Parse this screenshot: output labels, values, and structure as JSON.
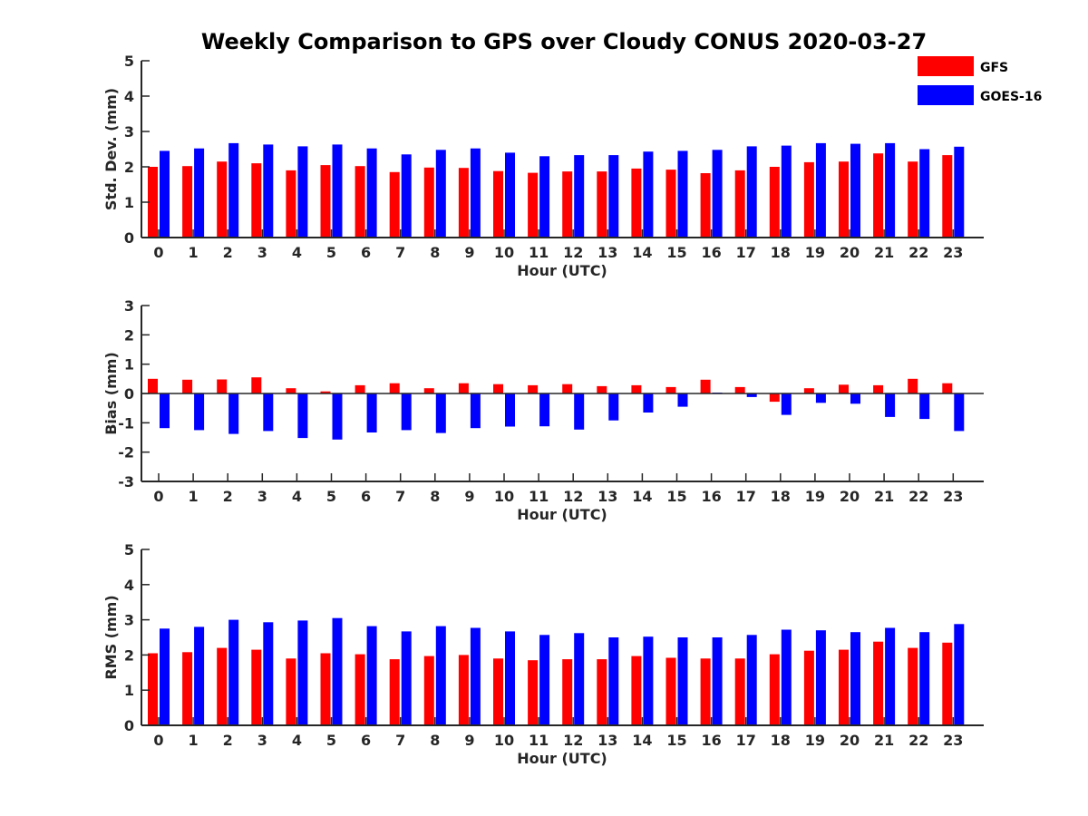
{
  "title": "Weekly Comparison to GPS over Cloudy CONUS 2020-03-27",
  "legend": {
    "placement": "top-right",
    "items": [
      {
        "label": "GFS",
        "color": "#ff0000"
      },
      {
        "label": "GOES-16",
        "color": "#0000ff"
      }
    ]
  },
  "chart_data": [
    {
      "type": "bar",
      "ylabel": "Std. Dev. (mm)",
      "xlabel": "Hour (UTC)",
      "ylim": [
        0,
        5
      ],
      "yticks": [
        0,
        1,
        2,
        3,
        4,
        5
      ],
      "categories": [
        "0",
        "1",
        "2",
        "3",
        "4",
        "5",
        "6",
        "7",
        "8",
        "9",
        "10",
        "11",
        "12",
        "13",
        "14",
        "15",
        "16",
        "17",
        "18",
        "19",
        "20",
        "21",
        "22",
        "23"
      ],
      "series": [
        {
          "name": "GFS",
          "color": "#ff0000",
          "values": [
            2.0,
            2.02,
            2.15,
            2.1,
            1.9,
            2.05,
            2.02,
            1.85,
            1.98,
            1.97,
            1.88,
            1.83,
            1.87,
            1.87,
            1.95,
            1.92,
            1.82,
            1.9,
            2.0,
            2.13,
            2.15,
            2.38,
            2.15,
            2.33
          ]
        },
        {
          "name": "GOES-16",
          "color": "#0000ff",
          "values": [
            2.45,
            2.52,
            2.67,
            2.63,
            2.58,
            2.63,
            2.52,
            2.35,
            2.48,
            2.52,
            2.4,
            2.3,
            2.33,
            2.33,
            2.43,
            2.45,
            2.48,
            2.58,
            2.6,
            2.67,
            2.65,
            2.67,
            2.5,
            2.57
          ]
        }
      ]
    },
    {
      "type": "bar",
      "ylabel": "Bias (mm)",
      "xlabel": "Hour (UTC)",
      "ylim": [
        -3,
        3
      ],
      "yticks": [
        -3,
        -2,
        -1,
        0,
        1,
        2,
        3
      ],
      "categories": [
        "0",
        "1",
        "2",
        "3",
        "4",
        "5",
        "6",
        "7",
        "8",
        "9",
        "10",
        "11",
        "12",
        "13",
        "14",
        "15",
        "16",
        "17",
        "18",
        "19",
        "20",
        "21",
        "22",
        "23"
      ],
      "series": [
        {
          "name": "GFS",
          "color": "#ff0000",
          "values": [
            0.5,
            0.47,
            0.48,
            0.55,
            0.18,
            0.07,
            0.28,
            0.35,
            0.18,
            0.35,
            0.32,
            0.28,
            0.32,
            0.25,
            0.28,
            0.22,
            0.47,
            0.22,
            -0.28,
            0.18,
            0.3,
            0.28,
            0.5,
            0.35
          ]
        },
        {
          "name": "GOES-16",
          "color": "#0000ff",
          "values": [
            -1.18,
            -1.25,
            -1.38,
            -1.28,
            -1.52,
            -1.57,
            -1.33,
            -1.25,
            -1.35,
            -1.18,
            -1.13,
            -1.12,
            -1.23,
            -0.92,
            -0.65,
            -0.45,
            0.03,
            -0.12,
            -0.73,
            -0.32,
            -0.35,
            -0.8,
            -0.87,
            -1.28
          ]
        }
      ]
    },
    {
      "type": "bar",
      "ylabel": "RMS (mm)",
      "xlabel": "Hour (UTC)",
      "ylim": [
        0,
        5
      ],
      "yticks": [
        0,
        1,
        2,
        3,
        4,
        5
      ],
      "categories": [
        "0",
        "1",
        "2",
        "3",
        "4",
        "5",
        "6",
        "7",
        "8",
        "9",
        "10",
        "11",
        "12",
        "13",
        "14",
        "15",
        "16",
        "17",
        "18",
        "19",
        "20",
        "21",
        "22",
        "23"
      ],
      "series": [
        {
          "name": "GFS",
          "color": "#ff0000",
          "values": [
            2.05,
            2.08,
            2.2,
            2.15,
            1.9,
            2.05,
            2.02,
            1.88,
            1.97,
            2.0,
            1.9,
            1.85,
            1.88,
            1.88,
            1.97,
            1.92,
            1.9,
            1.9,
            2.02,
            2.12,
            2.15,
            2.38,
            2.2,
            2.35
          ]
        },
        {
          "name": "GOES-16",
          "color": "#0000ff",
          "values": [
            2.75,
            2.8,
            3.0,
            2.93,
            2.98,
            3.05,
            2.82,
            2.67,
            2.82,
            2.77,
            2.67,
            2.57,
            2.62,
            2.5,
            2.52,
            2.5,
            2.5,
            2.57,
            2.72,
            2.7,
            2.65,
            2.77,
            2.65,
            2.88
          ]
        }
      ]
    }
  ]
}
